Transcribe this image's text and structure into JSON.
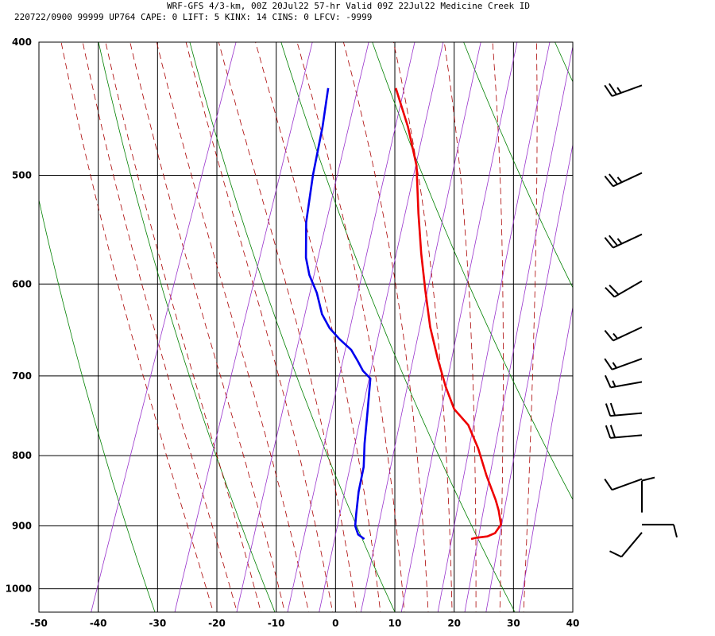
{
  "header": {
    "line1": "WRF-GFS 4/3-km, 00Z 20Jul22 57-hr Valid 09Z 22Jul22 Medicine Creek ID",
    "line2": "220722/0900 99999  UP764   CAPE:     0 LIFT:     5 KINX:    14 CINS:     0 LFCV: -9999"
  },
  "chart_data": {
    "type": "line",
    "subtype": "skew-t log-p sounding",
    "title": "",
    "x_ticks": [
      -50,
      -40,
      -30,
      -20,
      -10,
      0,
      10,
      20,
      30,
      40
    ],
    "y_ticks": [
      400,
      500,
      600,
      700,
      800,
      900,
      1000
    ],
    "xlim": [
      -50,
      40
    ],
    "ylim": [
      1040,
      400
    ],
    "y_scale": "log",
    "grid": true,
    "series": [
      {
        "color": "#ee0000",
        "role": "temperature",
        "points": [
          [
            -20.3,
            432
          ],
          [
            -16,
            461
          ],
          [
            -12.3,
            492
          ],
          [
            -9.2,
            533
          ],
          [
            -6.4,
            570
          ],
          [
            -3.6,
            606
          ],
          [
            -0.6,
            645
          ],
          [
            2.5,
            680
          ],
          [
            5.5,
            713
          ],
          [
            8.2,
            740
          ],
          [
            11.5,
            760
          ],
          [
            14.5,
            790
          ],
          [
            17.5,
            827
          ],
          [
            20.5,
            862
          ],
          [
            21.6,
            877
          ],
          [
            22.8,
            898
          ],
          [
            22.3,
            911
          ],
          [
            21.2,
            916
          ],
          [
            19.4,
            918
          ],
          [
            18.6,
            920
          ]
        ]
      },
      {
        "color": "#0000ee",
        "role": "dewpoint",
        "points": [
          [
            -31.7,
            432
          ],
          [
            -30.4,
            461
          ],
          [
            -29.2,
            500
          ],
          [
            -27.6,
            541
          ],
          [
            -25.6,
            574
          ],
          [
            -24,
            591
          ],
          [
            -21.7,
            609
          ],
          [
            -19.6,
            631
          ],
          [
            -17.5,
            646
          ],
          [
            -15.2,
            658
          ],
          [
            -12.6,
            670
          ],
          [
            -10.8,
            683
          ],
          [
            -9.4,
            694
          ],
          [
            -7.7,
            703
          ],
          [
            -6.4,
            739
          ],
          [
            -4.9,
            784
          ],
          [
            -3.7,
            815
          ],
          [
            -3.1,
            850
          ],
          [
            -2.2,
            883
          ],
          [
            -1.7,
            900
          ],
          [
            -0.7,
            913
          ],
          [
            0.6,
            920
          ]
        ]
      }
    ],
    "background_lines": {
      "isotherms_color": "#000000",
      "dry_adiabats_color": "#008000",
      "moist_adiabats_color": "#aa0000",
      "mixing_ratio_color": "#9933cc"
    },
    "wind_barbs_kt": [
      {
        "p": 430,
        "dir": 250,
        "spd": 25
      },
      {
        "p": 498,
        "dir": 245,
        "spd": 25
      },
      {
        "p": 552,
        "dir": 245,
        "spd": 25
      },
      {
        "p": 597,
        "dir": 240,
        "spd": 20
      },
      {
        "p": 645,
        "dir": 245,
        "spd": 15
      },
      {
        "p": 680,
        "dir": 250,
        "spd": 15
      },
      {
        "p": 707,
        "dir": 260,
        "spd": 15
      },
      {
        "p": 745,
        "dir": 265,
        "spd": 20
      },
      {
        "p": 773,
        "dir": 265,
        "spd": 20
      },
      {
        "p": 832,
        "dir": 250,
        "spd": 10
      },
      {
        "p": 880,
        "dir": 0,
        "spd": 10
      },
      {
        "p": 898,
        "dir": 90,
        "spd": 10
      },
      {
        "p": 910,
        "dir": 220,
        "spd": 10
      }
    ]
  }
}
